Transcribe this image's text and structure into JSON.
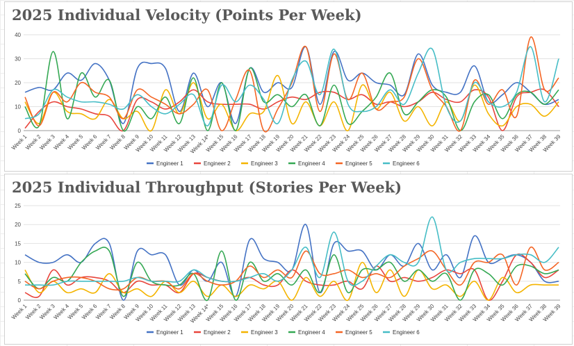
{
  "chart_data": [
    {
      "type": "line",
      "title": "2025 Individual Velocity (Points Per Week)",
      "categories": [
        "Week 1",
        "Week 2",
        "Week 3",
        "Week 4",
        "Week 5",
        "Week 6",
        "Week 7",
        "Week 8",
        "Week 9",
        "Week 10",
        "Week 11",
        "Week 12",
        "Week 13",
        "Week 14*",
        "Week 15",
        "Week 16",
        "Week 17",
        "Week 18",
        "Week 19",
        "Week 20",
        "Week 21",
        "Week 22",
        "Week 23",
        "Week 24",
        "Week 25",
        "Week 26",
        "Week 27",
        "Week 28",
        "Week 29",
        "Week 30",
        "Week 31",
        "Week 32",
        "Week 33",
        "Week 34",
        "Week 35",
        "Week 36",
        "Week 37",
        "Week 38",
        "Week 39"
      ],
      "ylim": [
        0,
        40
      ],
      "yticks": [
        0,
        10,
        20,
        30,
        40
      ],
      "grid": true,
      "legend": "bottom",
      "series": [
        {
          "name": "Engineer 1",
          "color": "#4472c4",
          "values": [
            16,
            18,
            17,
            24,
            21,
            28,
            21,
            3,
            26,
            28,
            26,
            8,
            24,
            10,
            20,
            3,
            26,
            16,
            20,
            18,
            35,
            11,
            33,
            21,
            24,
            20,
            19,
            15,
            32,
            19,
            16,
            16,
            27,
            12,
            15,
            20,
            16,
            11,
            13
          ]
        },
        {
          "name": "Engineer 2",
          "color": "#e8453c",
          "values": [
            1,
            8,
            12,
            10,
            9,
            7,
            6,
            0,
            13,
            12,
            9,
            12,
            17,
            12,
            11,
            11,
            11,
            9,
            12,
            14,
            13,
            16,
            16,
            13,
            15,
            11,
            12,
            10,
            12,
            16,
            13,
            12,
            17,
            14,
            0,
            14,
            16,
            17,
            10
          ]
        },
        {
          "name": "Engineer 3",
          "color": "#f4b400",
          "values": [
            12,
            3,
            16,
            8,
            7,
            5,
            13,
            5,
            8,
            0,
            17,
            7,
            20,
            5,
            11,
            0,
            7,
            8,
            23,
            3,
            12,
            2,
            12,
            0,
            19,
            9,
            16,
            4,
            10,
            2,
            12,
            4,
            19,
            7,
            2,
            10,
            11,
            6,
            12
          ]
        },
        {
          "name": "Engineer 4",
          "color": "#34a853",
          "values": [
            10,
            2,
            33,
            5,
            24,
            14,
            21,
            0,
            10,
            5,
            14,
            3,
            22,
            0,
            20,
            0,
            26,
            12,
            15,
            10,
            15,
            2,
            19,
            3,
            8,
            14,
            24,
            7,
            12,
            17,
            14,
            0,
            12,
            15,
            5,
            15,
            16,
            11,
            17
          ]
        },
        {
          "name": "Engineer 5",
          "color": "#f46524",
          "values": [
            14,
            2,
            16,
            12,
            20,
            16,
            14,
            5,
            17,
            14,
            11,
            7,
            11,
            17,
            0,
            13,
            25,
            0,
            9,
            20,
            35,
            8,
            32,
            13,
            24,
            9,
            12,
            14,
            30,
            17,
            10,
            0,
            21,
            11,
            17,
            6,
            39,
            17,
            22
          ]
        },
        {
          "name": "Engineer 6",
          "color": "#46bdc6",
          "values": [
            5,
            7,
            17,
            14,
            12,
            12,
            11,
            9,
            15,
            10,
            7,
            11,
            15,
            2,
            19,
            12,
            19,
            13,
            3,
            21,
            29,
            15,
            34,
            11,
            8,
            10,
            17,
            11,
            24,
            34,
            10,
            4,
            20,
            12,
            10,
            16,
            35,
            12,
            30
          ]
        }
      ]
    },
    {
      "type": "line",
      "title": "2025 Individual Throughput (Stories Per Week)",
      "categories": [
        "Week 1",
        "Week 2",
        "Week 3",
        "Week 4",
        "Week 5",
        "Week 6",
        "Week 7",
        "Week 8",
        "Week 9",
        "Week 10",
        "Week 11",
        "Week 12",
        "Week 13",
        "Week 14*",
        "Week 15",
        "Week 16",
        "Week 17",
        "Week 18",
        "Week 19",
        "Week 20",
        "Week 21",
        "Week 22",
        "Week 23",
        "Week 24",
        "Week 25",
        "Week 26",
        "Week 27",
        "Week 28",
        "Week 29",
        "Week 30",
        "Week 31",
        "Week 32",
        "Week 33",
        "Week 34",
        "Week 35",
        "Week 36",
        "Week 37",
        "Week 38",
        "Week 39"
      ],
      "ylim": [
        0,
        25
      ],
      "yticks": [
        0,
        5,
        10,
        15,
        20,
        25
      ],
      "grid": true,
      "legend": "bottom",
      "series": [
        {
          "name": "Engineer 1",
          "color": "#4472c4",
          "values": [
            12,
            10,
            10,
            12,
            10,
            15,
            15,
            0,
            13,
            12,
            12,
            4,
            8,
            5,
            10,
            1,
            16,
            11,
            10,
            8,
            20,
            2,
            15,
            13,
            13,
            8,
            12,
            9,
            15,
            8,
            12,
            6,
            17,
            10,
            11,
            12,
            10,
            5,
            5
          ]
        },
        {
          "name": "Engineer 2",
          "color": "#e8453c",
          "values": [
            2,
            1,
            8,
            4,
            6,
            6,
            5,
            2,
            5,
            4,
            4,
            2,
            7,
            6,
            5,
            5,
            6,
            4,
            4,
            8,
            5,
            4,
            4,
            5,
            3,
            9,
            5,
            6,
            5,
            6,
            8,
            7,
            8,
            0,
            5,
            12,
            10,
            6,
            8
          ]
        },
        {
          "name": "Engineer 3",
          "color": "#f4b400",
          "values": [
            8,
            2,
            5,
            2,
            3,
            2,
            7,
            2,
            3,
            1,
            5,
            2,
            5,
            1,
            4,
            1,
            4,
            3,
            5,
            0,
            6,
            1,
            5,
            0,
            10,
            2,
            8,
            1,
            8,
            3,
            4,
            1,
            5,
            0,
            6,
            2,
            4,
            4,
            4
          ]
        },
        {
          "name": "Engineer 4",
          "color": "#34a853",
          "values": [
            7,
            3,
            6,
            5,
            10,
            13,
            13,
            1,
            10,
            5,
            4,
            4,
            7,
            0,
            13,
            0,
            10,
            5,
            7,
            4,
            8,
            2,
            12,
            2,
            8,
            8,
            10,
            5,
            8,
            5,
            7,
            0,
            8,
            7,
            4,
            9,
            9,
            7,
            8
          ]
        },
        {
          "name": "Engineer 5",
          "color": "#f46524",
          "values": [
            5,
            3,
            5,
            6,
            6,
            5,
            3,
            3,
            6,
            5,
            5,
            3,
            7,
            5,
            4,
            5,
            9,
            6,
            8,
            6,
            13,
            7,
            7,
            8,
            6,
            7,
            6,
            9,
            11,
            13,
            8,
            4,
            10,
            10,
            12,
            4,
            14,
            8,
            10
          ]
        },
        {
          "name": "Engineer 6",
          "color": "#46bdc6",
          "values": [
            4,
            4,
            4,
            5,
            5,
            5,
            5,
            5,
            6,
            5,
            5,
            5,
            8,
            6,
            5,
            5,
            6,
            7,
            5,
            8,
            14,
            6,
            18,
            5,
            5,
            9,
            12,
            10,
            10,
            22,
            8,
            10,
            11,
            11,
            11,
            12,
            12,
            10,
            14
          ]
        }
      ]
    }
  ]
}
